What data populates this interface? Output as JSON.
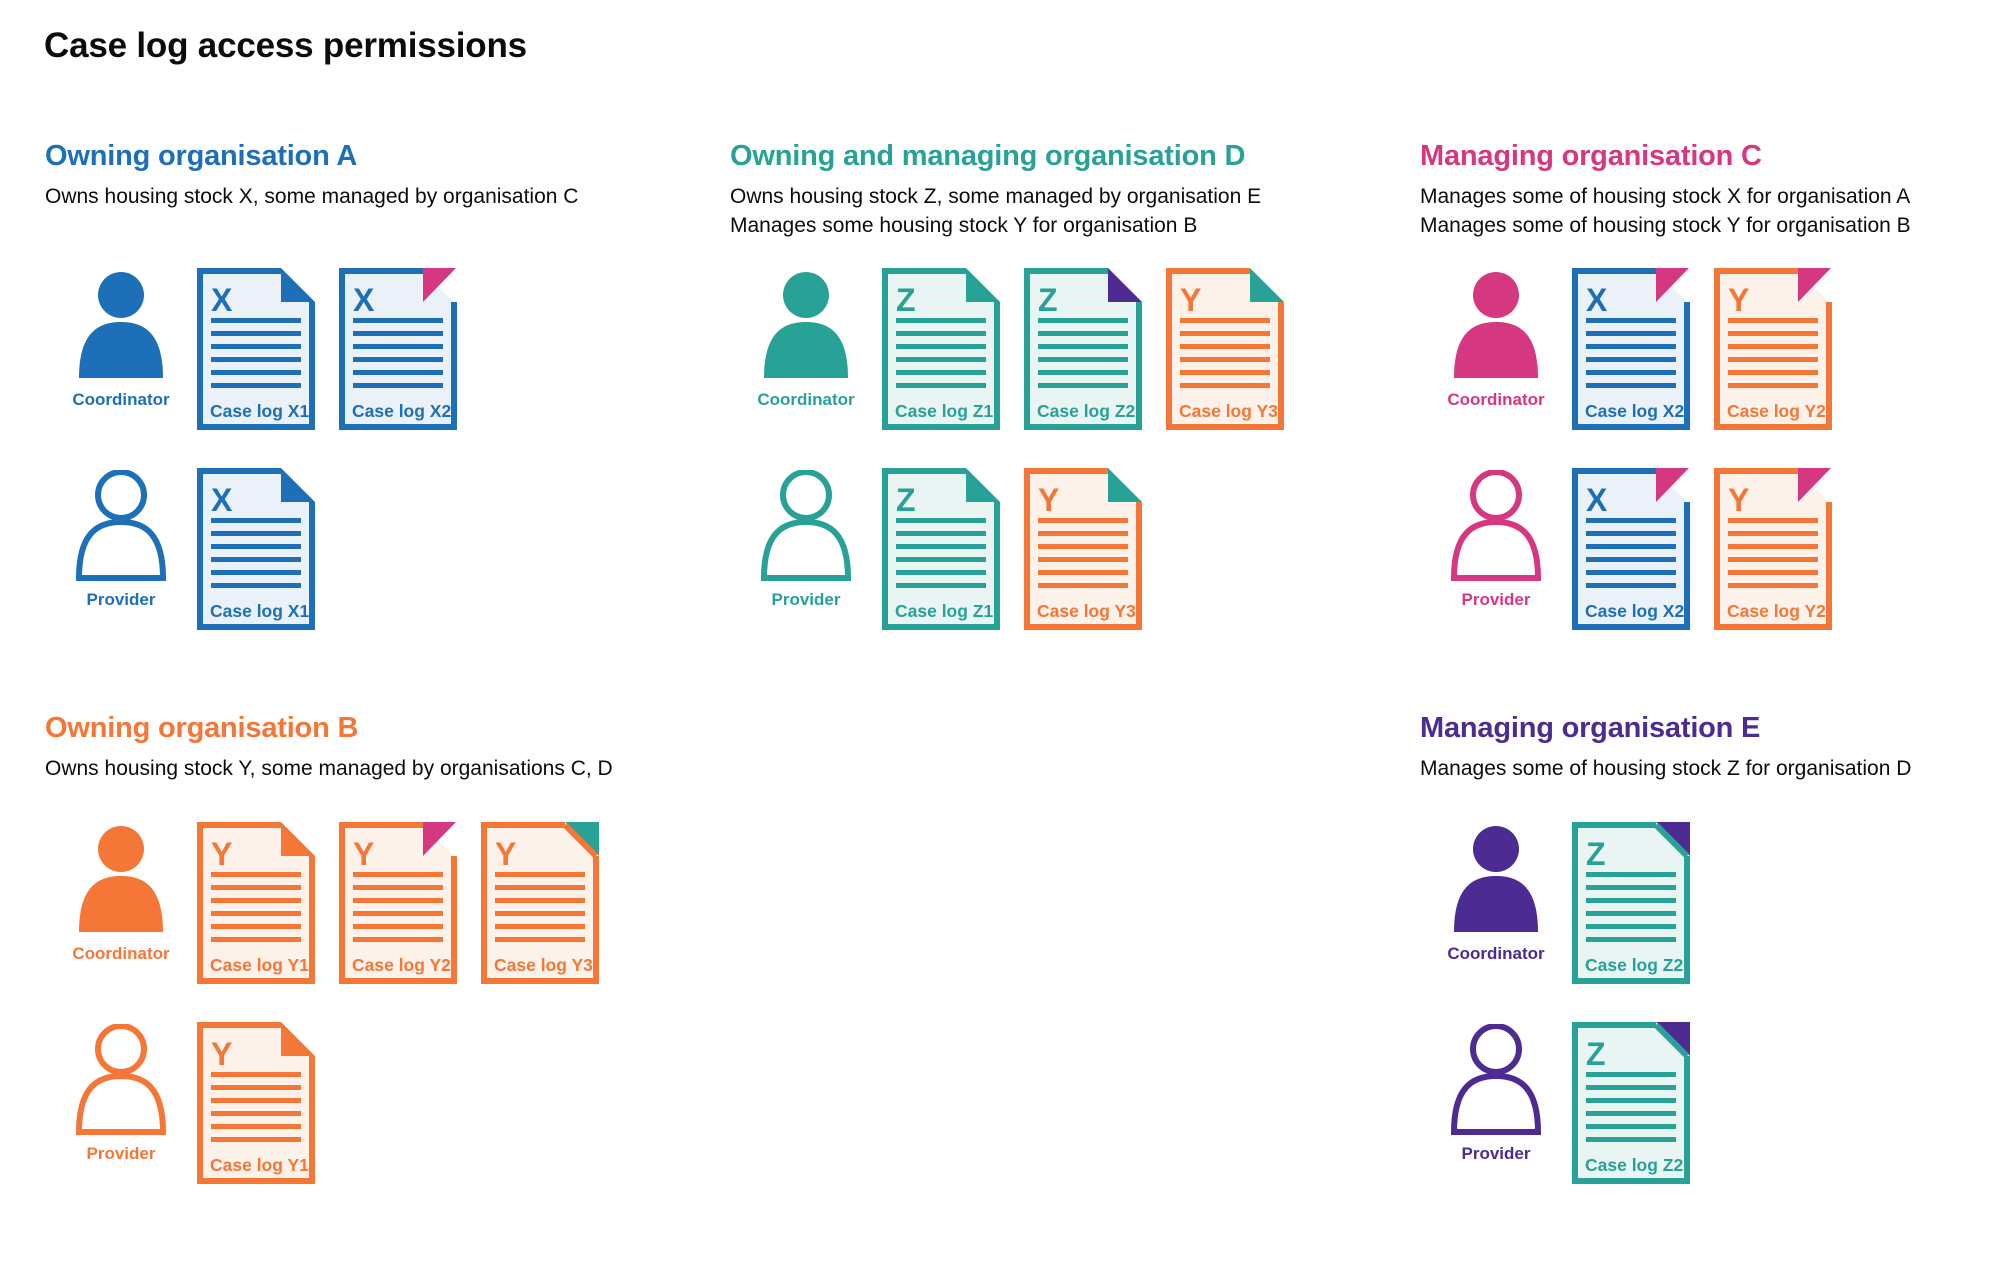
{
  "page": {
    "title": "Case log access permissions"
  },
  "colors": {
    "blue": "#1d70b8",
    "teal": "#28a197",
    "pink": "#d53880",
    "orange": "#f47738",
    "purple": "#4c2c92",
    "text": "#0b0c0c",
    "blue_tint": "#eaf1f8",
    "teal_tint": "#e9f5f3",
    "orange_tint": "#fdf2ea"
  },
  "sections": [
    {
      "id": "owning-organisation-a",
      "title": "Owning organisation A",
      "color": "blue",
      "description": [
        "Owns housing stock X, some managed by organisation C"
      ],
      "rows": [
        {
          "role": "Coordinator",
          "person_style": "filled",
          "docs": [
            {
              "letter": "X",
              "label": "Case log X1",
              "doc_color": "blue",
              "fold_color": "blue",
              "fold_style": "flap"
            },
            {
              "letter": "X",
              "label": "Case log X2",
              "doc_color": "blue",
              "fold_color": "pink",
              "fold_style": "ear"
            }
          ]
        },
        {
          "role": "Provider",
          "person_style": "outline",
          "docs": [
            {
              "letter": "X",
              "label": "Case log X1",
              "doc_color": "blue",
              "fold_color": "blue",
              "fold_style": "flap"
            }
          ]
        }
      ]
    },
    {
      "id": "owning-and-managing-organisation-d",
      "title": "Owning and managing organisation D",
      "color": "teal",
      "description": [
        "Owns housing stock Z, some managed by organisation E",
        "Manages some housing stock Y for organisation B"
      ],
      "rows": [
        {
          "role": "Coordinator",
          "person_style": "filled",
          "docs": [
            {
              "letter": "Z",
              "label": "Case log Z1",
              "doc_color": "teal",
              "fold_color": "teal",
              "fold_style": "flap"
            },
            {
              "letter": "Z",
              "label": "Case log Z2",
              "doc_color": "teal",
              "fold_color": "purple",
              "fold_style": "flap"
            },
            {
              "letter": "Y",
              "label": "Case log Y3",
              "doc_color": "orange",
              "fold_color": "teal",
              "fold_style": "flap"
            }
          ]
        },
        {
          "role": "Provider",
          "person_style": "outline",
          "docs": [
            {
              "letter": "Z",
              "label": "Case log Z1",
              "doc_color": "teal",
              "fold_color": "teal",
              "fold_style": "flap"
            },
            {
              "letter": "Y",
              "label": "Case log Y3",
              "doc_color": "orange",
              "fold_color": "teal",
              "fold_style": "flap"
            }
          ]
        }
      ]
    },
    {
      "id": "managing-organisation-c",
      "title": "Managing organisation C",
      "color": "pink",
      "description": [
        "Manages some of housing stock X for organisation A",
        "Manages some of housing stock Y for organisation B"
      ],
      "rows": [
        {
          "role": "Coordinator",
          "person_style": "filled",
          "docs": [
            {
              "letter": "X",
              "label": "Case log X2",
              "doc_color": "blue",
              "fold_color": "pink",
              "fold_style": "ear"
            },
            {
              "letter": "Y",
              "label": "Case log Y2",
              "doc_color": "orange",
              "fold_color": "pink",
              "fold_style": "ear"
            }
          ]
        },
        {
          "role": "Provider",
          "person_style": "outline",
          "docs": [
            {
              "letter": "X",
              "label": "Case log X2",
              "doc_color": "blue",
              "fold_color": "pink",
              "fold_style": "ear"
            },
            {
              "letter": "Y",
              "label": "Case log Y2",
              "doc_color": "orange",
              "fold_color": "pink",
              "fold_style": "ear"
            }
          ]
        }
      ]
    },
    {
      "id": "owning-organisation-b",
      "title": "Owning organisation B",
      "color": "orange",
      "description": [
        "Owns housing stock Y, some managed by organisations C, D"
      ],
      "rows": [
        {
          "role": "Coordinator",
          "person_style": "filled",
          "docs": [
            {
              "letter": "Y",
              "label": "Case log Y1",
              "doc_color": "orange",
              "fold_color": "orange",
              "fold_style": "flap"
            },
            {
              "letter": "Y",
              "label": "Case log Y2",
              "doc_color": "orange",
              "fold_color": "pink",
              "fold_style": "ear"
            },
            {
              "letter": "Y",
              "label": "Case log Y3",
              "doc_color": "orange",
              "fold_color": "teal",
              "fold_style": "corner"
            }
          ]
        },
        {
          "role": "Provider",
          "person_style": "outline",
          "docs": [
            {
              "letter": "Y",
              "label": "Case log Y1",
              "doc_color": "orange",
              "fold_color": "orange",
              "fold_style": "flap"
            }
          ]
        }
      ]
    },
    {
      "id": "managing-organisation-e",
      "title": "Managing organisation E",
      "color": "purple",
      "description": [
        "Manages some of housing stock Z for organisation D"
      ],
      "rows": [
        {
          "role": "Coordinator",
          "person_style": "filled",
          "docs": [
            {
              "letter": "Z",
              "label": "Case log Z2",
              "doc_color": "teal",
              "fold_color": "purple",
              "fold_style": "corner"
            }
          ]
        },
        {
          "role": "Provider",
          "person_style": "outline",
          "docs": [
            {
              "letter": "Z",
              "label": "Case log Z2",
              "doc_color": "teal",
              "fold_color": "purple",
              "fold_style": "corner"
            }
          ]
        }
      ]
    }
  ]
}
